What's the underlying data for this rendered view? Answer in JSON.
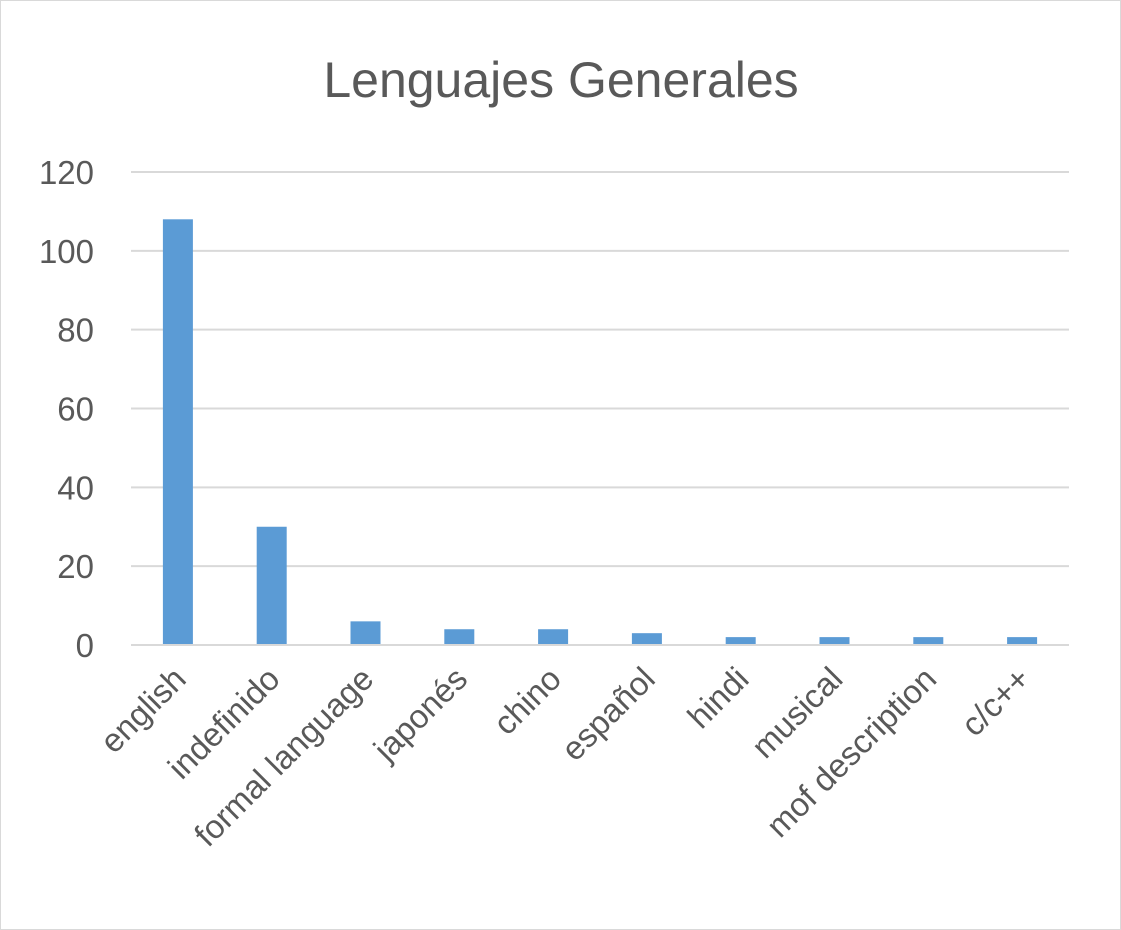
{
  "chart_data": {
    "type": "bar",
    "title": "Lenguajes Generales",
    "xlabel": "",
    "ylabel": "",
    "categories": [
      "english",
      "indefinido",
      "formal language",
      "japonés",
      "chino",
      "español",
      "hindi",
      "musical",
      "mof description",
      "c/c++"
    ],
    "values": [
      108,
      30,
      6,
      4,
      4,
      3,
      2,
      2,
      2,
      2
    ],
    "ylim": [
      0,
      120
    ],
    "yticks": [
      0,
      20,
      40,
      60,
      80,
      100,
      120
    ],
    "grid": true,
    "legend": "none",
    "bar_color": "#5b9bd5",
    "grid_color": "#d9d9d9",
    "text_color": "#595959"
  }
}
